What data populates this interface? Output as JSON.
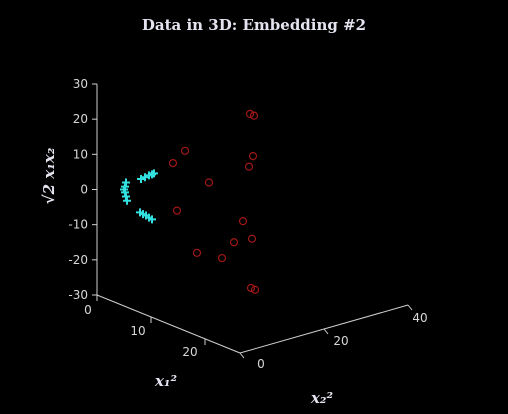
{
  "chart_data": {
    "type": "scatter",
    "title": "Data in 3D: Embedding #2",
    "xlabel": "x₁²",
    "ylabel": "x₂²",
    "zlabel": "√2 x₁x₂",
    "x_ticks": [
      "0",
      "10",
      "20"
    ],
    "y_ticks": [
      "0",
      "20",
      "40"
    ],
    "z_ticks": [
      "30",
      "20",
      "10",
      "0",
      "-10",
      "-20",
      "-30"
    ],
    "zlim": [
      -30,
      30
    ],
    "grid": false,
    "series": [
      {
        "marker": "plus",
        "color": "#33e0e0",
        "points": [
          {
            "z": 3
          },
          {
            "z": 3.5
          },
          {
            "z": 4
          },
          {
            "z": 4.3
          },
          {
            "z": 4.6
          },
          {
            "z": 2
          },
          {
            "z": 0.8
          },
          {
            "z": 0
          },
          {
            "z": -0.8
          },
          {
            "z": -2
          },
          {
            "z": -3.2
          },
          {
            "z": -6.5
          },
          {
            "z": -7
          },
          {
            "z": -7.4
          },
          {
            "z": -8
          },
          {
            "z": -8.5
          }
        ]
      },
      {
        "marker": "circle",
        "color": "#a01818",
        "points": [
          {
            "z": 21.5
          },
          {
            "z": 21
          },
          {
            "z": 9.5
          },
          {
            "z": 6.5
          },
          {
            "z": 11
          },
          {
            "z": 7.5
          },
          {
            "z": 2
          },
          {
            "z": -6
          },
          {
            "z": -9
          },
          {
            "z": -14
          },
          {
            "z": -15
          },
          {
            "z": -18
          },
          {
            "z": -19.5
          },
          {
            "z": -28
          },
          {
            "z": -28.5
          }
        ]
      }
    ]
  }
}
